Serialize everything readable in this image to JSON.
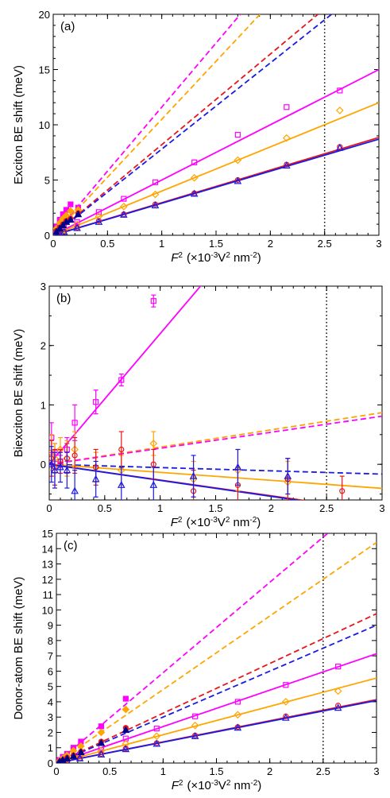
{
  "colors": {
    "magenta": "#ff00ff",
    "orange": "#ffa500",
    "red": "#e8161b",
    "blue": "#1a1ae6",
    "darkblue": "#00008b"
  },
  "chart_data": [
    {
      "type": "scatter",
      "panel_label": "(a)",
      "ylabel": "Exciton BE shift (meV)",
      "xlabel_var": "F",
      "xlabel_sup": "2",
      "xlabel_text": "(×10",
      "xlabel_exp": "-3",
      "xlabel_unit": "V",
      "xlabel_unit_sup": "2",
      "xlabel_unit2": " nm",
      "xlabel_unit2_sup": "-2",
      "xlabel_close": ")",
      "xlim": [
        0,
        3
      ],
      "ylim": [
        0,
        20
      ],
      "xticks": [
        0,
        0.5,
        1,
        1.5,
        2,
        2.5,
        3
      ],
      "xtick_labels": [
        "0",
        "0.5",
        "1",
        "1.5",
        "2",
        "2.5",
        "3"
      ],
      "yticks": [
        0,
        5,
        10,
        15,
        20
      ],
      "ytick_labels": [
        "0",
        "5",
        "10",
        "15",
        "20"
      ],
      "vline": 2.5,
      "lines": [
        {
          "color": "magenta",
          "style": "dashed",
          "slope": 11.6
        },
        {
          "color": "orange",
          "style": "dashed",
          "slope": 10.5
        },
        {
          "color": "red",
          "style": "dashed",
          "slope": 8.2
        },
        {
          "color": "blue",
          "style": "dashed",
          "slope": 7.8
        },
        {
          "color": "magenta",
          "style": "solid",
          "slope": 5.0
        },
        {
          "color": "orange",
          "style": "solid",
          "slope": 4.0
        },
        {
          "color": "red",
          "style": "solid",
          "slope": 2.95
        },
        {
          "color": "blue",
          "style": "solid",
          "slope": 2.9
        }
      ],
      "series": [
        {
          "color": "magenta",
          "marker": "square",
          "fill": false,
          "x": [
            0.02,
            0.05,
            0.1,
            0.22,
            0.42,
            0.65,
            0.94,
            1.3,
            1.7,
            2.15,
            2.64
          ],
          "y": [
            0.2,
            0.4,
            0.7,
            1.2,
            2.1,
            3.3,
            4.8,
            6.6,
            9.1,
            11.6,
            13.1
          ]
        },
        {
          "color": "orange",
          "marker": "diamond",
          "fill": false,
          "x": [
            0.02,
            0.05,
            0.1,
            0.22,
            0.42,
            0.65,
            0.94,
            1.3,
            1.7,
            2.15,
            2.64
          ],
          "y": [
            0.15,
            0.3,
            0.5,
            1.0,
            1.7,
            2.6,
            3.7,
            5.2,
            6.8,
            8.8,
            11.3
          ]
        },
        {
          "color": "red",
          "marker": "circle",
          "fill": false,
          "x": [
            0.02,
            0.05,
            0.1,
            0.22,
            0.42,
            0.65,
            0.94,
            1.3,
            1.7,
            2.15,
            2.64
          ],
          "y": [
            0.1,
            0.2,
            0.35,
            0.7,
            1.3,
            1.9,
            2.8,
            3.8,
            5.0,
            6.4,
            8.0
          ]
        },
        {
          "color": "blue",
          "marker": "triangle",
          "fill": false,
          "x": [
            0.02,
            0.05,
            0.1,
            0.22,
            0.42,
            0.65,
            0.94,
            1.3,
            1.7,
            2.15,
            2.64
          ],
          "y": [
            0.1,
            0.2,
            0.3,
            0.65,
            1.2,
            1.85,
            2.7,
            3.75,
            4.9,
            6.3,
            7.9
          ]
        },
        {
          "color": "magenta",
          "marker": "square",
          "fill": true,
          "x": [
            0.03,
            0.06,
            0.09,
            0.12,
            0.16,
            0.23
          ],
          "y": [
            0.8,
            1.4,
            1.9,
            2.3,
            2.8,
            2.5
          ]
        },
        {
          "color": "orange",
          "marker": "diamond",
          "fill": true,
          "x": [
            0.03,
            0.06,
            0.09,
            0.12,
            0.16,
            0.23
          ],
          "y": [
            0.6,
            1.1,
            1.5,
            1.8,
            2.2,
            2.3
          ]
        },
        {
          "color": "red",
          "marker": "circle",
          "fill": true,
          "x": [
            0.03,
            0.06,
            0.09,
            0.12,
            0.16,
            0.23
          ],
          "y": [
            0.4,
            0.7,
            1.0,
            1.3,
            1.5,
            2.0
          ]
        },
        {
          "color": "darkblue",
          "marker": "triangle",
          "fill": true,
          "x": [
            0.03,
            0.06,
            0.09,
            0.12,
            0.16,
            0.23
          ],
          "y": [
            0.3,
            0.6,
            0.9,
            1.2,
            1.4,
            1.9
          ]
        }
      ]
    },
    {
      "type": "scatter",
      "panel_label": "(b)",
      "ylabel": "Biexciton BE shift (meV)",
      "xlabel_var": "F",
      "xlabel_sup": "2",
      "xlabel_text": "(×10",
      "xlabel_exp": "-3",
      "xlabel_unit": "V",
      "xlabel_unit_sup": "2",
      "xlabel_unit2": " nm",
      "xlabel_unit2_sup": "-2",
      "xlabel_close": ")",
      "xlim": [
        0,
        3
      ],
      "ylim": [
        -0.6,
        3
      ],
      "xticks": [
        0,
        0.5,
        1,
        1.5,
        2,
        2.5,
        3
      ],
      "xtick_labels": [
        "0",
        "0.5",
        "1",
        "1.5",
        "2",
        "2.5",
        "3"
      ],
      "yticks": [
        0,
        1,
        2,
        3
      ],
      "ytick_labels": [
        "0",
        "1",
        "2",
        "3"
      ],
      "vline": 2.5,
      "lines": [
        {
          "color": "magenta",
          "style": "solid",
          "slope": 2.2
        },
        {
          "color": "orange",
          "style": "dashed",
          "slope": 0.29
        },
        {
          "color": "magenta",
          "style": "dashed",
          "slope": 0.27
        },
        {
          "color": "blue",
          "style": "dashed",
          "slope": -0.055
        },
        {
          "color": "orange",
          "style": "solid",
          "slope": -0.135
        },
        {
          "color": "red",
          "style": "solid",
          "slope": -0.265
        },
        {
          "color": "blue",
          "style": "solid",
          "slope": -0.27
        }
      ],
      "series": [
        {
          "color": "magenta",
          "marker": "square",
          "fill": false,
          "x": [
            0.02,
            0.05,
            0.1,
            0.16,
            0.23,
            0.42,
            0.65,
            0.94
          ],
          "y": [
            0.45,
            0.2,
            0.05,
            0.25,
            0.7,
            1.05,
            1.42,
            2.75
          ],
          "err": [
            0.25,
            0.15,
            0.1,
            0.2,
            0.3,
            0.2,
            0.1,
            0.1
          ]
        },
        {
          "color": "orange",
          "marker": "diamond",
          "fill": false,
          "x": [
            0.02,
            0.05,
            0.1,
            0.16,
            0.23,
            0.42,
            0.65,
            0.94,
            1.3,
            1.7,
            2.15
          ],
          "y": [
            0.2,
            0.1,
            0.25,
            0.1,
            0.25,
            -0.05,
            -0.1,
            0.35,
            -0.25,
            -0.1,
            -0.3
          ],
          "err": [
            0.3,
            0.25,
            0.2,
            0.3,
            0.3,
            0.25,
            0.25,
            0.2,
            0.3,
            0.35,
            0.35
          ]
        },
        {
          "color": "red",
          "marker": "circle",
          "fill": false,
          "x": [
            0.02,
            0.05,
            0.1,
            0.16,
            0.23,
            0.42,
            0.65,
            0.94,
            1.3,
            1.7,
            2.15,
            2.64
          ],
          "y": [
            0.1,
            -0.05,
            0.05,
            0.1,
            0.15,
            -0.05,
            0.25,
            0.0,
            -0.45,
            -0.35,
            -0.25,
            -0.45
          ],
          "err": [
            0.3,
            0.3,
            0.2,
            0.25,
            0.3,
            0.3,
            0.3,
            0.25,
            0.35,
            0.3,
            0.35,
            0.25
          ]
        },
        {
          "color": "blue",
          "marker": "triangle",
          "fill": false,
          "x": [
            0.02,
            0.05,
            0.1,
            0.16,
            0.23,
            0.42,
            0.65,
            0.94,
            1.3,
            1.7,
            2.15
          ],
          "y": [
            0.0,
            -0.1,
            -0.05,
            -0.1,
            -0.45,
            -0.25,
            -0.35,
            -0.35,
            -0.2,
            -0.05,
            -0.2
          ],
          "err": [
            0.3,
            0.3,
            0.25,
            0.3,
            0.35,
            0.3,
            0.3,
            0.3,
            0.35,
            0.3,
            0.3
          ]
        }
      ]
    },
    {
      "type": "scatter",
      "panel_label": "(c)",
      "ylabel": "Donor-atom BE shift (meV)",
      "xlabel_var": "F",
      "xlabel_sup": "2",
      "xlabel_text": "(×10",
      "xlabel_exp": "-3",
      "xlabel_unit": "V",
      "xlabel_unit_sup": "2",
      "xlabel_unit2": " nm",
      "xlabel_unit2_sup": "-2",
      "xlabel_close": ")",
      "xlim": [
        0,
        3
      ],
      "ylim": [
        0,
        15
      ],
      "xticks": [
        0,
        0.5,
        1,
        1.5,
        2,
        2.5,
        3
      ],
      "xtick_labels": [
        "0",
        "0.5",
        "1",
        "1.5",
        "2",
        "2.5",
        "3"
      ],
      "yticks": [
        0,
        1,
        2,
        3,
        4,
        5,
        6,
        7,
        8,
        9,
        10,
        11,
        12,
        13,
        14,
        15
      ],
      "ytick_labels": [
        "0",
        "1",
        "2",
        "3",
        "4",
        "5",
        "6",
        "7",
        "8",
        "9",
        "10",
        "11",
        "12",
        "13",
        "14",
        "15"
      ],
      "vline": 2.5,
      "lines": [
        {
          "color": "magenta",
          "style": "dashed",
          "slope": 5.9
        },
        {
          "color": "orange",
          "style": "dashed",
          "slope": 4.8
        },
        {
          "color": "red",
          "style": "dashed",
          "slope": 3.25
        },
        {
          "color": "blue",
          "style": "dashed",
          "slope": 3.0
        },
        {
          "color": "magenta",
          "style": "solid",
          "slope": 2.38
        },
        {
          "color": "orange",
          "style": "solid",
          "slope": 1.85
        },
        {
          "color": "red",
          "style": "solid",
          "slope": 1.38
        },
        {
          "color": "blue",
          "style": "solid",
          "slope": 1.36
        }
      ],
      "series": [
        {
          "color": "magenta",
          "marker": "square",
          "fill": false,
          "x": [
            0.02,
            0.05,
            0.1,
            0.22,
            0.42,
            0.65,
            0.94,
            1.3,
            1.7,
            2.15,
            2.64
          ],
          "y": [
            0.1,
            0.15,
            0.3,
            0.55,
            1.0,
            1.6,
            2.25,
            3.05,
            4.0,
            5.1,
            6.3
          ]
        },
        {
          "color": "orange",
          "marker": "diamond",
          "fill": false,
          "x": [
            0.02,
            0.05,
            0.1,
            0.22,
            0.42,
            0.65,
            0.94,
            1.3,
            1.7,
            2.15,
            2.64
          ],
          "y": [
            0.08,
            0.12,
            0.22,
            0.42,
            0.8,
            1.25,
            1.75,
            2.45,
            3.15,
            4.0,
            4.7
          ]
        },
        {
          "color": "red",
          "marker": "circle",
          "fill": false,
          "x": [
            0.02,
            0.05,
            0.1,
            0.22,
            0.42,
            0.65,
            0.94,
            1.3,
            1.7,
            2.15,
            2.64
          ],
          "y": [
            0.05,
            0.1,
            0.15,
            0.3,
            0.6,
            0.95,
            1.3,
            1.8,
            2.35,
            3.05,
            3.75
          ]
        },
        {
          "color": "blue",
          "marker": "triangle",
          "fill": false,
          "x": [
            0.02,
            0.05,
            0.1,
            0.22,
            0.42,
            0.65,
            0.94,
            1.3,
            1.7,
            2.15,
            2.64
          ],
          "y": [
            0.05,
            0.08,
            0.13,
            0.3,
            0.55,
            0.9,
            1.25,
            1.75,
            2.3,
            2.95,
            3.6
          ]
        },
        {
          "color": "magenta",
          "marker": "square",
          "fill": true,
          "x": [
            0.03,
            0.06,
            0.1,
            0.16,
            0.23,
            0.42,
            0.65
          ],
          "y": [
            0.2,
            0.4,
            0.6,
            1.0,
            1.4,
            2.4,
            4.2
          ]
        },
        {
          "color": "orange",
          "marker": "diamond",
          "fill": true,
          "x": [
            0.03,
            0.06,
            0.1,
            0.16,
            0.23,
            0.42,
            0.65
          ],
          "y": [
            0.15,
            0.3,
            0.5,
            0.8,
            1.1,
            2.0,
            3.5
          ]
        },
        {
          "color": "red",
          "marker": "circle",
          "fill": true,
          "x": [
            0.03,
            0.06,
            0.1,
            0.16,
            0.23,
            0.42,
            0.65
          ],
          "y": [
            0.1,
            0.2,
            0.35,
            0.5,
            0.75,
            1.4,
            2.3
          ]
        },
        {
          "color": "darkblue",
          "marker": "triangle",
          "fill": true,
          "x": [
            0.03,
            0.06,
            0.1,
            0.16,
            0.23,
            0.42,
            0.65
          ],
          "y": [
            0.1,
            0.2,
            0.3,
            0.45,
            0.7,
            1.3,
            2.15
          ]
        }
      ]
    }
  ]
}
